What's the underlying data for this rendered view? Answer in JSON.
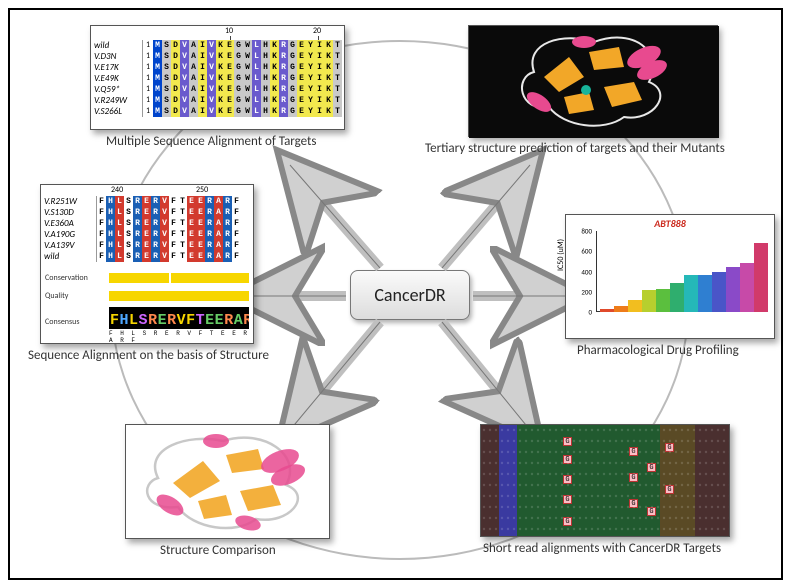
{
  "center": {
    "label": "CancerDR"
  },
  "panels": {
    "msa": {
      "caption": "Multiple Sequence Alignment of Targets",
      "ticks": [
        "10",
        "20"
      ],
      "labels": [
        "wild",
        "V.D3N",
        "V.E17K",
        "V.E49K",
        "V.Q59*",
        "V.R249W",
        "V.S266L"
      ],
      "startIndex": "1",
      "sequence_letters": [
        "M",
        "S",
        "D",
        "V",
        "A",
        "I",
        "V",
        "K",
        "E",
        "G",
        "W",
        "L",
        "H",
        "K",
        "R",
        "G",
        "E",
        "Y",
        "I",
        "K",
        "T"
      ],
      "color_classes": [
        "cM",
        "cGray",
        "cYel",
        "cBlue",
        "cGray",
        "cYel",
        "cBlue",
        "cYel",
        "cYel",
        "cGray",
        "cGray",
        "cBlue",
        "cGray",
        "cYel",
        "cBlue",
        "cGray",
        "cYel",
        "cYel",
        "cYel",
        "cYel",
        "cGray"
      ]
    },
    "tertiary": {
      "caption": "Tertiary structure prediction of targets and their Mutants",
      "helix_color": "#e84a8f",
      "sheet_color": "#f2a728",
      "loop_color": "#eaeaea",
      "accent_color": "#18b49b",
      "bg": "#0a0a0a"
    },
    "structAlign": {
      "caption": "Sequence Alignment on the basis of Structure",
      "ticks": [
        "240",
        "250"
      ],
      "labels": [
        "V.R251W",
        "V.S130D",
        "V.E360A",
        "V.A190G",
        "V.A139V",
        "wild"
      ],
      "sequence_letters": [
        "F",
        "H",
        "L",
        "S",
        "R",
        "E",
        "R",
        "V",
        "F",
        "T",
        "E",
        "E",
        "R",
        "A",
        "R",
        "F"
      ],
      "color_classes": [
        "cWhite",
        "cBluD",
        "cRed",
        "cWhite",
        "cBluD",
        "cRed",
        "cBluD",
        "cRed",
        "cWhite",
        "cWhite",
        "cRed",
        "cRed",
        "cBluD",
        "cRed",
        "cBluD",
        "cWhite"
      ],
      "tracks": {
        "conservation": "Conservation",
        "quality": "Quality",
        "consensus": "Consensus"
      },
      "consensus_seq": "FHLSRERVFTEERARF",
      "consensus_sub": "F H L S R E R V F T E E R A R F"
    },
    "drugProfile": {
      "caption": "Pharmacological Drug Profiling",
      "title": "ABT888",
      "ylabel": "IC50 (uM)",
      "ylim": 800,
      "yticks": [
        0,
        200,
        400,
        600,
        800
      ],
      "bars": [
        {
          "v": 25,
          "c": "#e04a2b"
        },
        {
          "v": 55,
          "c": "#ee7c1a"
        },
        {
          "v": 120,
          "c": "#f2be1f"
        },
        {
          "v": 215,
          "c": "#b7cf2e"
        },
        {
          "v": 230,
          "c": "#5bbf3e"
        },
        {
          "v": 290,
          "c": "#2fae6e"
        },
        {
          "v": 365,
          "c": "#25b8b8"
        },
        {
          "v": 370,
          "c": "#2f7fd1"
        },
        {
          "v": 395,
          "c": "#4a55c8"
        },
        {
          "v": 445,
          "c": "#8a4ac8"
        },
        {
          "v": 480,
          "c": "#c74aa8"
        },
        {
          "v": 680,
          "c": "#d13a6a"
        }
      ]
    },
    "structCompare": {
      "caption": "Structure Comparison",
      "helix_color": "#e84a8f",
      "sheet_color": "#f2a728",
      "loop_color": "#f0f0f0",
      "bg": "#ffffff"
    },
    "shortRead": {
      "caption": "Short read alignments with CancerDR Targets",
      "col_colors": [
        "#4a2f2f",
        "#3a3aa0",
        "#215a2f",
        "#215a2f",
        "#215a2f",
        "#215a2f",
        "#215a2f",
        "#215a2f",
        "#215a2f",
        "#215a2f",
        "#5a4a25",
        "#5a4a25",
        "#4a2f2f",
        "#4a2f2f"
      ],
      "snp_letters": [
        "G",
        "G",
        "G",
        "G",
        "G",
        "G",
        "G",
        "G"
      ]
    }
  }
}
